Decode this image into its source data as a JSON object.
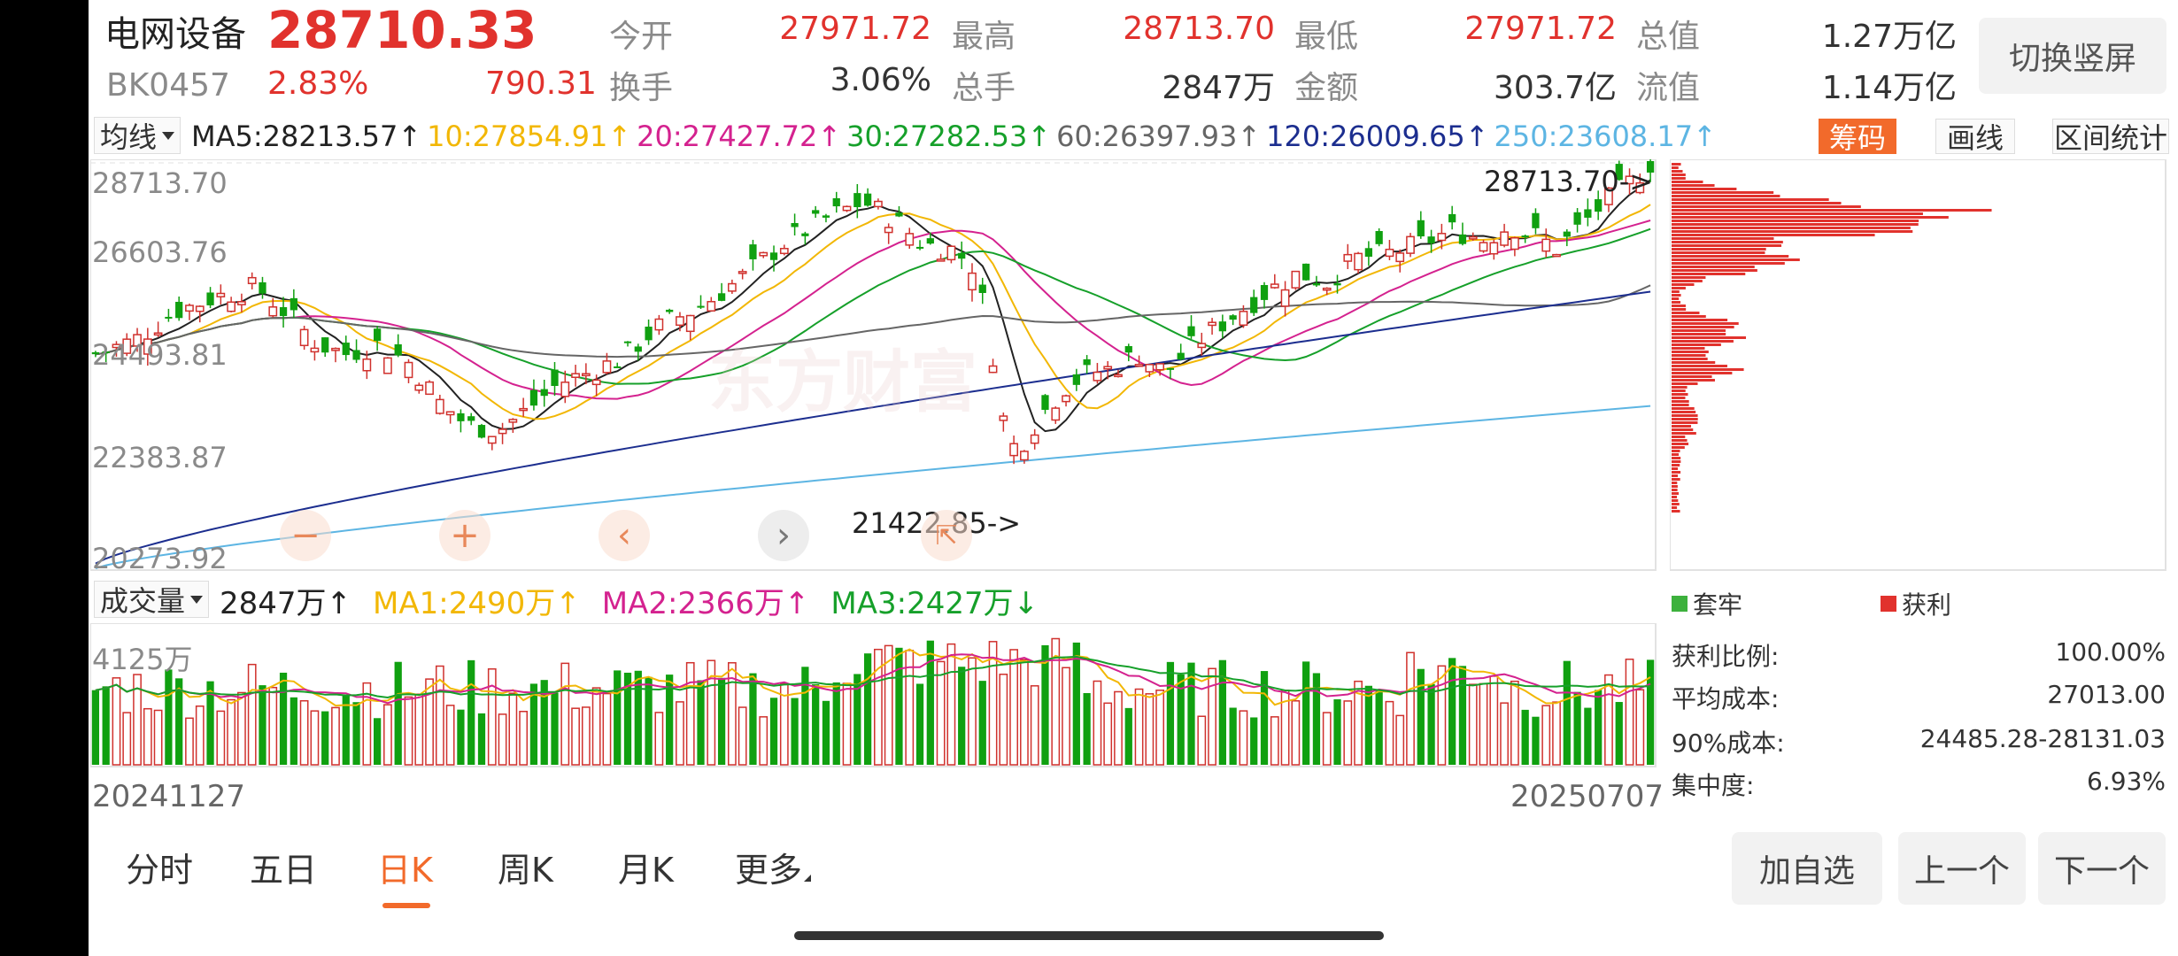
{
  "header": {
    "name": "电网设备",
    "price": "28710.33",
    "code": "BK0457",
    "change_pct": "2.83%",
    "change": "790.31",
    "portrait_button": "切换竖屏",
    "stats": [
      {
        "label": "今开",
        "value": "27971.72",
        "color": "red"
      },
      {
        "label": "最高",
        "value": "28713.70",
        "color": "red"
      },
      {
        "label": "最低",
        "value": "27971.72",
        "color": "red"
      },
      {
        "label": "总值",
        "value": "1.27万亿",
        "color": "dark"
      },
      {
        "label": "换手",
        "value": "3.06%",
        "color": "dark"
      },
      {
        "label": "总手",
        "value": "2847万",
        "color": "dark"
      },
      {
        "label": "金额",
        "value": "303.7亿",
        "color": "dark"
      },
      {
        "label": "流值",
        "value": "1.14万亿",
        "color": "dark"
      }
    ]
  },
  "ma_bar": {
    "select_label": "均线",
    "items": [
      {
        "text": "MA5:28213.57↑",
        "color": "#222222"
      },
      {
        "text": "10:27854.91↑",
        "color": "#f2b705"
      },
      {
        "text": "20:27427.72↑",
        "color": "#d4228f"
      },
      {
        "text": "30:27282.53↑",
        "color": "#16a02a"
      },
      {
        "text": "60:26397.93↑",
        "color": "#666666"
      },
      {
        "text": "120:26009.65↑",
        "color": "#1c2e8f"
      },
      {
        "text": "250:23608.17↑",
        "color": "#5db5e3"
      }
    ],
    "buttons": {
      "chips": "筹码",
      "draw": "画线",
      "range": "区间统计"
    }
  },
  "chart_data": {
    "type": "candlestick",
    "price_axis": {
      "ticks": [
        "28713.70",
        "26603.76",
        "24493.81",
        "22383.87",
        "20273.92"
      ]
    },
    "high_annotation": "28713.70->",
    "low_annotation": "21422.85->",
    "volume_axis_label": "4125万",
    "dates": {
      "start": "20241127",
      "end": "20250707"
    },
    "series_colors": {
      "up": "#d0312d",
      "down": "#10a010"
    }
  },
  "volume_bar": {
    "select_label": "成交量",
    "items": [
      {
        "text": "2847万↑",
        "color": "#222222"
      },
      {
        "text": "MA1:2490万↑",
        "color": "#f2b705"
      },
      {
        "text": "MA2:2366万↑",
        "color": "#d4228f"
      },
      {
        "text": "MA3:2427万↓",
        "color": "#16a02a"
      }
    ]
  },
  "chip_panel": {
    "legend": {
      "trapped": "套牢",
      "profit": "获利"
    },
    "stats": [
      {
        "label": "获利比例:",
        "value": "100.00%"
      },
      {
        "label": "平均成本:",
        "value": "27013.00"
      },
      {
        "label": "90%成本:",
        "value": "24485.28-28131.03"
      },
      {
        "label": "集中度:",
        "value": "6.93%"
      }
    ]
  },
  "tabs": [
    "分时",
    "五日",
    "日K",
    "周K",
    "月K",
    "更多"
  ],
  "active_tab": "日K",
  "bottom_buttons": {
    "add": "加自选",
    "prev": "上一个",
    "next": "下一个"
  },
  "watermark": "东方财富"
}
